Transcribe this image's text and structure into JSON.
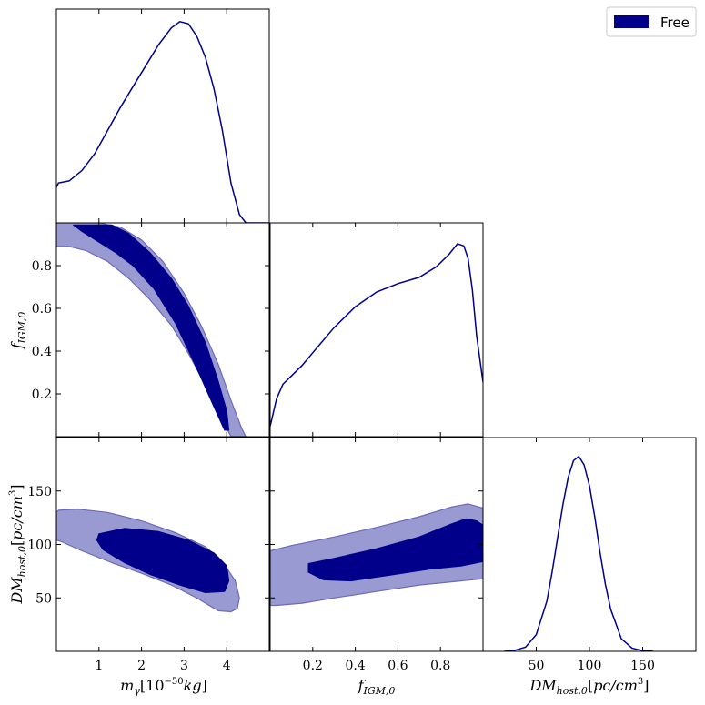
{
  "colors": {
    "dark": "#00008b",
    "light": "#9a9ad2",
    "light_edge": "#6a6ab8",
    "line": "#00008b",
    "frame": "#000000"
  },
  "legend": {
    "label": "Free",
    "position": "top-right"
  },
  "chart_data": [
    {
      "type": "line",
      "panel": "m_gamma-marginal",
      "xlim": [
        0,
        5
      ],
      "ylim": [
        0,
        1
      ],
      "x": [
        0.0,
        0.05,
        0.3,
        0.6,
        0.9,
        1.2,
        1.5,
        1.8,
        2.1,
        2.4,
        2.7,
        2.9,
        3.1,
        3.3,
        3.5,
        3.7,
        3.9,
        4.1,
        4.3,
        4.45,
        4.6,
        5.0
      ],
      "y": [
        0.17,
        0.19,
        0.2,
        0.25,
        0.33,
        0.44,
        0.55,
        0.65,
        0.75,
        0.85,
        0.93,
        0.96,
        0.95,
        0.89,
        0.79,
        0.64,
        0.44,
        0.19,
        0.04,
        0.0,
        0.0,
        0.0
      ]
    },
    {
      "type": "line",
      "panel": "f_IGM-marginal",
      "xlim": [
        0,
        1
      ],
      "ylim": [
        0,
        1
      ],
      "x": [
        0.0,
        0.03,
        0.06,
        0.1,
        0.15,
        0.2,
        0.3,
        0.4,
        0.5,
        0.6,
        0.7,
        0.78,
        0.84,
        0.88,
        0.91,
        0.93,
        0.95,
        0.97,
        1.0
      ],
      "y": [
        0.05,
        0.18,
        0.25,
        0.29,
        0.34,
        0.4,
        0.52,
        0.62,
        0.69,
        0.73,
        0.76,
        0.81,
        0.87,
        0.92,
        0.91,
        0.85,
        0.7,
        0.48,
        0.26
      ]
    },
    {
      "type": "line",
      "panel": "DM_host-marginal",
      "xlim": [
        0,
        200
      ],
      "ylim": [
        0,
        1
      ],
      "x": [
        20,
        30,
        40,
        50,
        60,
        65,
        70,
        75,
        80,
        85,
        90,
        95,
        100,
        105,
        110,
        115,
        120,
        130,
        140,
        150,
        160
      ],
      "y": [
        0.0,
        0.005,
        0.02,
        0.08,
        0.24,
        0.38,
        0.54,
        0.7,
        0.83,
        0.91,
        0.93,
        0.89,
        0.79,
        0.64,
        0.47,
        0.32,
        0.2,
        0.06,
        0.015,
        0.003,
        0.0
      ]
    },
    {
      "type": "area",
      "panel": "f_IGM-vs-m_gamma",
      "xlim": [
        0,
        5
      ],
      "ylim": [
        0,
        1
      ],
      "contours": [
        {
          "level": "outer",
          "x": [
            0,
            0.5,
            1.0,
            1.5,
            2.0,
            2.5,
            3.0,
            3.4,
            3.8,
            4.1,
            4.35,
            4.45,
            4.4,
            4.1,
            3.8,
            3.5,
            3.1,
            2.7,
            2.2,
            1.7,
            1.2,
            0.7,
            0.3,
            0
          ],
          "y": [
            1.0,
            1.0,
            1.0,
            0.98,
            0.92,
            0.82,
            0.67,
            0.52,
            0.34,
            0.17,
            0.04,
            0.0,
            0.0,
            0.0,
            0.12,
            0.24,
            0.39,
            0.52,
            0.64,
            0.74,
            0.82,
            0.87,
            0.89,
            0.89
          ]
        },
        {
          "level": "inner",
          "x": [
            0.5,
            0.9,
            1.3,
            1.7,
            2.2,
            2.7,
            3.1,
            3.5,
            3.8,
            4.0,
            4.05,
            3.95,
            3.7,
            3.3,
            2.8,
            2.3,
            1.8,
            1.4,
            1.0,
            0.6,
            0.4
          ],
          "y": [
            0.99,
            0.99,
            0.99,
            0.95,
            0.86,
            0.74,
            0.61,
            0.44,
            0.26,
            0.12,
            0.03,
            0.03,
            0.14,
            0.32,
            0.53,
            0.69,
            0.8,
            0.86,
            0.91,
            0.96,
            0.99
          ]
        }
      ]
    },
    {
      "type": "area",
      "panel": "DM_host-vs-m_gamma",
      "xlim": [
        0,
        5
      ],
      "ylim": [
        0,
        200
      ],
      "contours": [
        {
          "level": "outer",
          "x": [
            0.05,
            0.5,
            1.2,
            2.0,
            2.8,
            3.5,
            3.9,
            4.2,
            4.3,
            4.25,
            4.1,
            3.8,
            3.3,
            2.7,
            2.0,
            1.3,
            0.6,
            0.1,
            0.0,
            0.0
          ],
          "y": [
            132,
            133,
            130,
            122,
            111,
            98,
            84,
            66,
            50,
            40,
            37,
            38,
            50,
            62,
            73,
            83,
            94,
            103,
            104,
            130
          ]
        },
        {
          "level": "inner",
          "x": [
            1.0,
            1.6,
            2.4,
            3.1,
            3.7,
            4.0,
            4.05,
            3.95,
            3.5,
            2.9,
            2.2,
            1.6,
            1.1,
            0.95
          ],
          "y": [
            110,
            115,
            112,
            104,
            92,
            80,
            66,
            56,
            55,
            62,
            72,
            83,
            95,
            104
          ]
        }
      ]
    },
    {
      "type": "area",
      "panel": "DM_host-vs-f_IGM",
      "xlim": [
        0,
        1
      ],
      "ylim": [
        0,
        200
      ],
      "contours": [
        {
          "level": "outer",
          "x": [
            0.0,
            0.1,
            0.3,
            0.5,
            0.7,
            0.85,
            0.93,
            1.0,
            1.0,
            0.9,
            0.7,
            0.5,
            0.3,
            0.15,
            0.03,
            0.0
          ],
          "y": [
            94,
            99,
            107,
            116,
            126,
            135,
            138,
            134,
            68,
            66,
            62,
            56,
            50,
            45,
            43,
            43
          ]
        },
        {
          "level": "inner",
          "x": [
            0.18,
            0.3,
            0.5,
            0.7,
            0.85,
            0.92,
            0.97,
            1.0,
            1.0,
            0.9,
            0.75,
            0.55,
            0.38,
            0.25,
            0.18
          ],
          "y": [
            82,
            87,
            96,
            107,
            119,
            124,
            122,
            118,
            84,
            80,
            77,
            71,
            66,
            67,
            74
          ]
        }
      ]
    }
  ],
  "axes": {
    "m_gamma": {
      "lim": [
        0,
        5
      ],
      "ticks": [
        "1",
        "2",
        "3",
        "4"
      ],
      "tick_values": [
        1,
        2,
        3,
        4
      ]
    },
    "f_IGM": {
      "lim": [
        0,
        1
      ],
      "ticks": [
        "0.2",
        "0.4",
        "0.6",
        "0.8"
      ],
      "tick_values": [
        0.2,
        0.4,
        0.6,
        0.8
      ]
    },
    "DM_host": {
      "lim": [
        0,
        200
      ],
      "ticks": [
        "50",
        "100",
        "150"
      ],
      "tick_values": [
        50,
        100,
        150
      ]
    }
  }
}
